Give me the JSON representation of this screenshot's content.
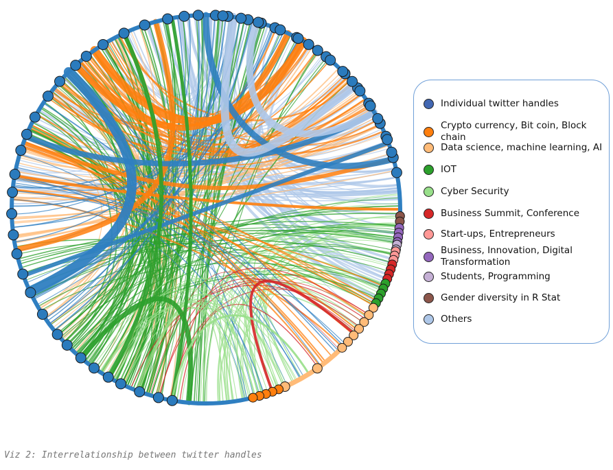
{
  "caption": "Viz 2: Interrelationship between twitter handles",
  "legend": [
    {
      "label": "Individual twitter handles",
      "color": "#4267b2"
    },
    {
      "label": "Crypto currency, Bit coin, Block chain",
      "color": "#ff7f0e"
    },
    {
      "label": "Data science, machine learning, AI",
      "color": "#ffbb78"
    },
    {
      "label": "IOT",
      "color": "#2ca02c"
    },
    {
      "label": "Cyber Security",
      "color": "#98df8a"
    },
    {
      "label": "Business Summit, Conference",
      "color": "#d62728"
    },
    {
      "label": "Start-ups, Entrepreneurs",
      "color": "#ff9896"
    },
    {
      "label": "Business, Innovation, Digital Transformation",
      "color": "#9467bd"
    },
    {
      "label": "Students, Programming",
      "color": "#c5b0d5"
    },
    {
      "label": "Gender diversity in R Stat",
      "color": "#8c564b"
    },
    {
      "label": "Others",
      "color": "#aec7e8"
    }
  ],
  "colors": {
    "ring": "#2f7fc1",
    "node_blue": "#2b7bbd",
    "node_stroke": "#1a1a1a"
  }
}
